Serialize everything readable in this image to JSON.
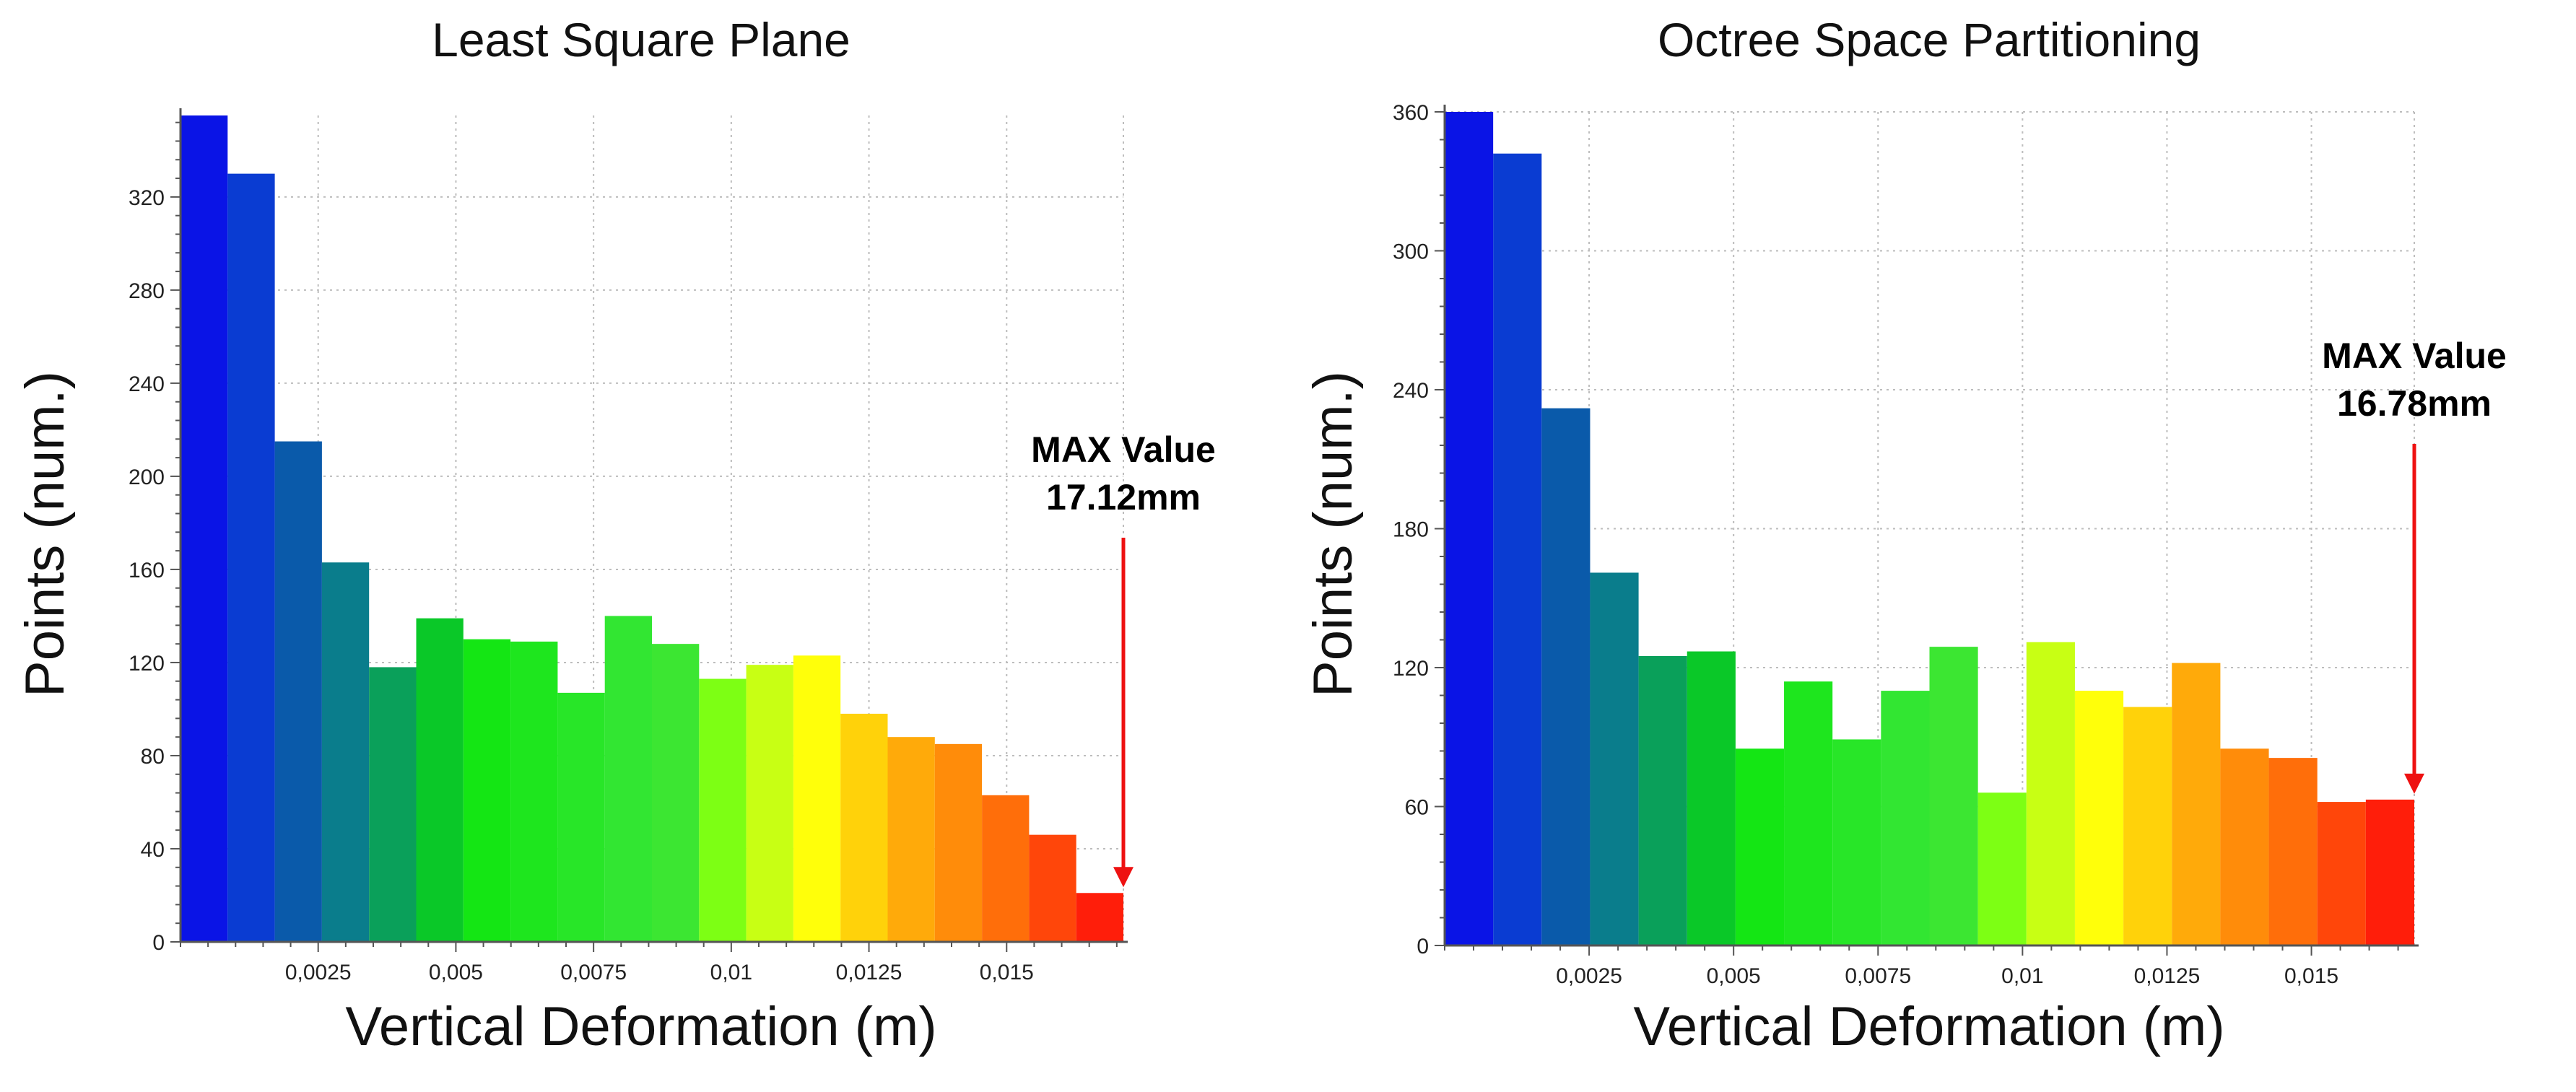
{
  "chart_data": [
    {
      "type": "bar",
      "title": "Least Square Plane",
      "xlabel": "Vertical Deformation (m)",
      "ylabel": "Points (num.)",
      "xlim": [
        0,
        0.01712
      ],
      "ylim": [
        0,
        355
      ],
      "x_ticks": [
        0.0025,
        0.005,
        0.0075,
        0.01,
        0.0125,
        0.015
      ],
      "x_tick_labels": [
        "0,0025",
        "0,005",
        "0,0075",
        "0,01",
        "0,0125",
        "0,015"
      ],
      "y_ticks": [
        0,
        40,
        80,
        120,
        160,
        200,
        240,
        280,
        320
      ],
      "y_tick_labels": [
        "0",
        "40",
        "80",
        "120",
        "160",
        "200",
        "240",
        "280",
        "320"
      ],
      "bin_width": 0.000856,
      "values": [
        355,
        330,
        215,
        163,
        118,
        139,
        130,
        129,
        107,
        140,
        128,
        113,
        119,
        123,
        98,
        88,
        85,
        63,
        46,
        21
      ],
      "colors": [
        "#0a14e6",
        "#0a3cd2",
        "#0a5aaa",
        "#0a7d8c",
        "#0aa05a",
        "#0ac828",
        "#14e614",
        "#1ee61e",
        "#28e628",
        "#32e632",
        "#3ce632",
        "#7dff14",
        "#c8ff14",
        "#ffff0a",
        "#ffd20a",
        "#ffaa0a",
        "#ff8c0a",
        "#ff6e0a",
        "#ff460a",
        "#ff1e0a"
      ],
      "annotation": {
        "line1": "MAX Value",
        "line2": "17.12mm",
        "x": 0.01712
      }
    },
    {
      "type": "bar",
      "title": "Octree Space Partitioning",
      "xlabel": "Vertical Deformation (m)",
      "ylabel": "Points (num.)",
      "xlim": [
        0,
        0.01678
      ],
      "ylim": [
        0,
        360
      ],
      "x_ticks": [
        0.0025,
        0.005,
        0.0075,
        0.01,
        0.0125,
        0.015
      ],
      "x_tick_labels": [
        "0,0025",
        "0,005",
        "0,0075",
        "0,01",
        "0,0125",
        "0,015"
      ],
      "y_ticks": [
        0,
        60,
        120,
        180,
        240,
        300,
        360
      ],
      "y_tick_labels": [
        "0",
        "60",
        "120",
        "180",
        "240",
        "300",
        "360"
      ],
      "bin_width": 0.000839,
      "values": [
        360,
        342,
        232,
        161,
        125,
        127,
        85,
        114,
        89,
        110,
        129,
        66,
        131,
        110,
        103,
        122,
        85,
        81,
        62,
        63
      ],
      "colors": [
        "#0a14e6",
        "#0a3cd2",
        "#0a5aaa",
        "#0a7d8c",
        "#0aa05a",
        "#0ac828",
        "#14e614",
        "#1ee61e",
        "#28e628",
        "#32e632",
        "#3ce632",
        "#7dff14",
        "#c8ff14",
        "#ffff0a",
        "#ffd20a",
        "#ffaa0a",
        "#ff8c0a",
        "#ff6e0a",
        "#ff460a",
        "#ff1e0a"
      ],
      "annotation": {
        "line1": "MAX Value",
        "line2": "16.78mm",
        "x": 0.01678
      }
    }
  ]
}
